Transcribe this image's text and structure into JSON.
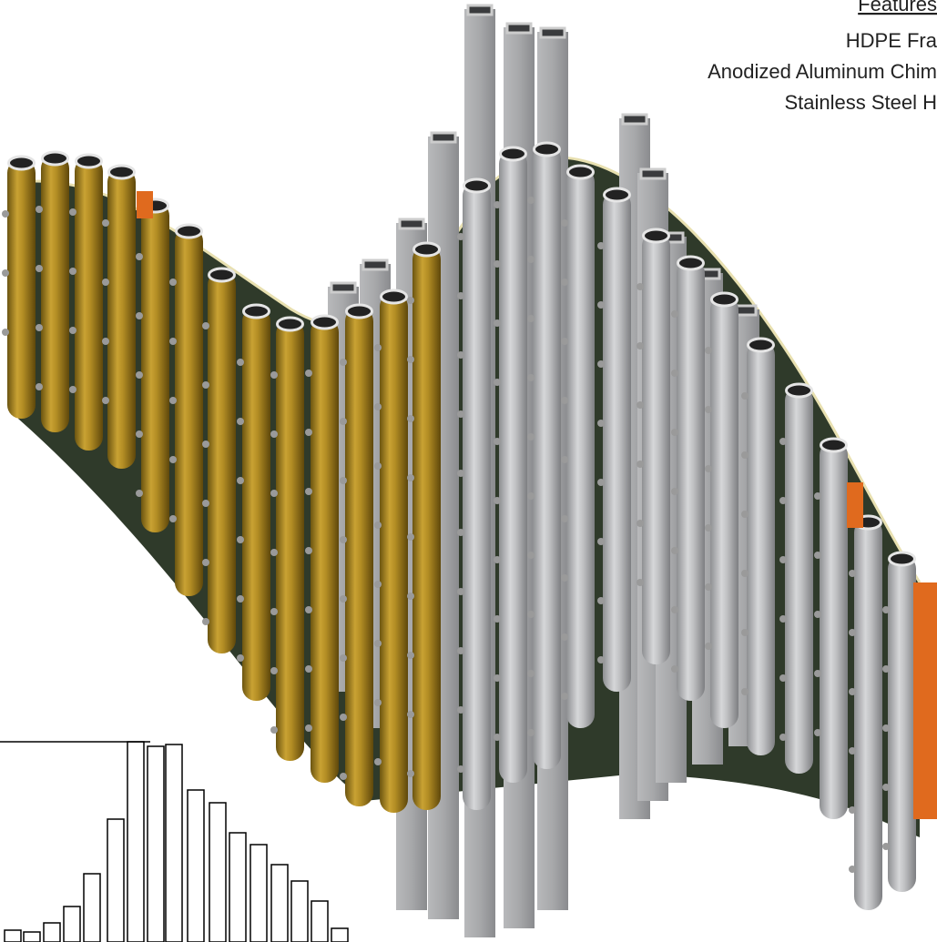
{
  "features": {
    "heading": "Features",
    "items": [
      "HDPE Fra",
      "Anodized Aluminum Chim",
      "Stainless Steel H"
    ]
  }
}
